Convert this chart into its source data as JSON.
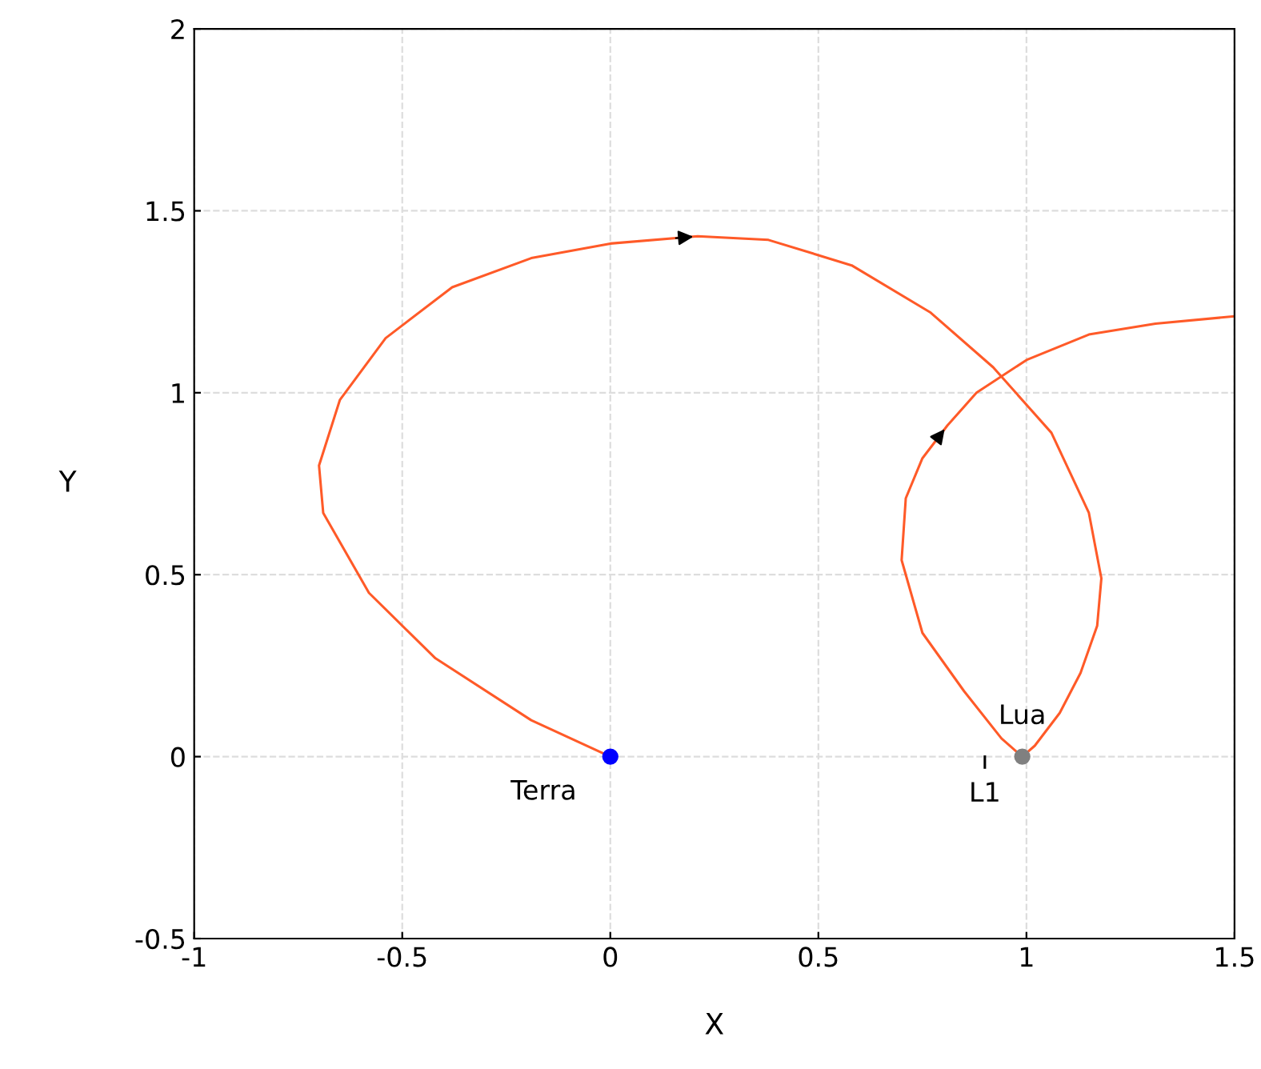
{
  "chart_data": {
    "type": "line",
    "xlabel": "X",
    "ylabel": "Y",
    "xlim": [
      -1,
      1.5
    ],
    "ylim": [
      -0.5,
      2
    ],
    "xticks": [
      -1,
      -0.5,
      0,
      0.5,
      1,
      1.5
    ],
    "yticks": [
      -0.5,
      0,
      0.5,
      1,
      1.5,
      2
    ],
    "grid": true,
    "series": [
      {
        "color": "#ff5a28",
        "marker": "none",
        "line_style": "solid",
        "x": [
          0,
          -0.19,
          -0.42,
          -0.58,
          -0.69,
          -0.7,
          -0.65,
          -0.54,
          -0.38,
          -0.19,
          0,
          0.21,
          0.38,
          0.58,
          0.77,
          0.92,
          1.06,
          1.15,
          1.18,
          1.17,
          1.13,
          1.08,
          1.02,
          0.99,
          0.94,
          0.85,
          0.75,
          0.7,
          0.71,
          0.75,
          0.81,
          0.88,
          1.0,
          1.15,
          1.31,
          1.5
        ],
        "values": [
          0,
          0.1,
          0.27,
          0.45,
          0.67,
          0.8,
          0.98,
          1.15,
          1.29,
          1.37,
          1.41,
          1.43,
          1.42,
          1.35,
          1.22,
          1.07,
          0.89,
          0.67,
          0.49,
          0.36,
          0.23,
          0.12,
          0.03,
          0,
          0.05,
          0.18,
          0.34,
          0.54,
          0.71,
          0.82,
          0.91,
          1.0,
          1.09,
          1.16,
          1.19,
          1.21
        ]
      },
      {
        "type": "scatter",
        "name": "Terra",
        "color": "#0000ff",
        "marker": "circle",
        "x": [
          0
        ],
        "values": [
          0
        ]
      },
      {
        "type": "scatter",
        "name": "Lua",
        "color": "#808080",
        "marker": "circle",
        "x": [
          0.99
        ],
        "values": [
          0
        ]
      },
      {
        "name": "L1",
        "color": "#000000",
        "marker": "none",
        "line_style": "solid",
        "x": [
          0.9,
          0.9
        ],
        "values": [
          0,
          -0.03
        ]
      }
    ]
  }
}
